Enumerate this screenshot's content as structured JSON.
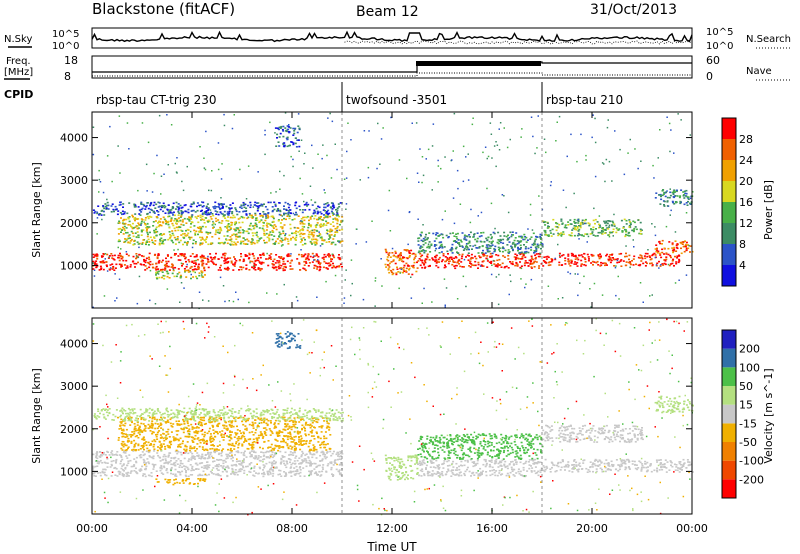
{
  "header": {
    "station": "Blackstone (fitACF)",
    "beam": "Beam 12",
    "date": "31/Oct/2013"
  },
  "noise_panel": {
    "left_label": "N.Sky",
    "right_label": "N.Search",
    "ticks_top": "10^5",
    "ticks_bottom": "10^0"
  },
  "freq_panel": {
    "left_label": "Freq.",
    "left_unit": "[MHz]",
    "left_ticks": [
      "18",
      "8"
    ],
    "right_label": "Nave",
    "right_ticks": [
      "60",
      "0"
    ]
  },
  "cpid": {
    "label": "CPID",
    "segments": [
      {
        "name": "rbsp-tau CT-trig 230",
        "start_hour": 0
      },
      {
        "name": "twofsound -3501",
        "start_hour": 10
      },
      {
        "name": "rbsp-tau 210",
        "start_hour": 18
      }
    ]
  },
  "colors": {
    "power": [
      "#1010e0",
      "#2c54c8",
      "#3c8c64",
      "#48b048",
      "#d8d820",
      "#f0a000",
      "#f06000",
      "#ff0000"
    ],
    "velocity_pos": [
      "#2020c0",
      "#3070a8",
      "#4cc048",
      "#b4e080"
    ],
    "velocity_neg": [
      "#f0b000",
      "#f08000",
      "#f04800",
      "#ff0000"
    ],
    "velocity_ground": "#c8c8c8"
  },
  "chart_data": [
    {
      "type": "heatmap",
      "name": "power",
      "xlabel": "",
      "ylabel": "Slant Range [km]",
      "xlim": [
        0,
        24
      ],
      "ylim": [
        0,
        4600
      ],
      "yticks": [
        "1000",
        "2000",
        "3000",
        "4000"
      ],
      "colorbar_label": "Power [dB]",
      "colorbar_ticks": [
        "4",
        "8",
        "12",
        "16",
        "20",
        "24",
        "28"
      ],
      "bands": [
        {
          "x": [
            0.0,
            10.0
          ],
          "y": [
            900,
            1300
          ],
          "level": 7
        },
        {
          "x": [
            1.0,
            10.0
          ],
          "y": [
            1500,
            2200
          ],
          "level": 4
        },
        {
          "x": [
            0.0,
            10.0
          ],
          "y": [
            2200,
            2500
          ],
          "level": 1
        },
        {
          "x": [
            2.5,
            4.5
          ],
          "y": [
            700,
            900
          ],
          "level": 4
        },
        {
          "x": [
            7.3,
            8.3
          ],
          "y": [
            3800,
            4300
          ],
          "level": 1
        },
        {
          "x": [
            11.7,
            13.0
          ],
          "y": [
            800,
            1400
          ],
          "level": 6
        },
        {
          "x": [
            13.0,
            18.0
          ],
          "y": [
            950,
            1300
          ],
          "level": 7
        },
        {
          "x": [
            13.0,
            18.0
          ],
          "y": [
            1300,
            1800
          ],
          "level": 2
        },
        {
          "x": [
            18.0,
            23.5
          ],
          "y": [
            1000,
            1300
          ],
          "level": 7
        },
        {
          "x": [
            18.0,
            22.0
          ],
          "y": [
            1700,
            2100
          ],
          "level": 3
        },
        {
          "x": [
            22.5,
            24.0
          ],
          "y": [
            1300,
            1600
          ],
          "level": 6
        },
        {
          "x": [
            22.5,
            24.0
          ],
          "y": [
            2400,
            2800
          ],
          "level": 2
        }
      ]
    },
    {
      "type": "heatmap",
      "name": "velocity",
      "xlabel": "Time UT",
      "ylabel": "Slant Range [km]",
      "xlim": [
        0,
        24
      ],
      "ylim": [
        0,
        4600
      ],
      "yticks": [
        "1000",
        "2000",
        "3000",
        "4000"
      ],
      "xticks": [
        "00:00",
        "04:00",
        "08:00",
        "12:00",
        "16:00",
        "20:00",
        "00:00"
      ],
      "colorbar_label": "Velocity [m s^-1]",
      "colorbar_ticks": [
        "200",
        "100",
        "50",
        "15",
        "-15",
        "-50",
        "-100",
        "-200"
      ],
      "bands": [
        {
          "x": [
            0.0,
            10.0
          ],
          "y": [
            900,
            1500
          ],
          "color": "ground"
        },
        {
          "x": [
            1.0,
            9.5
          ],
          "y": [
            1500,
            2300
          ],
          "color": "neg0"
        },
        {
          "x": [
            0.0,
            10.0
          ],
          "y": [
            2200,
            2500
          ],
          "color": "pos3"
        },
        {
          "x": [
            2.5,
            4.5
          ],
          "y": [
            700,
            850
          ],
          "color": "neg0"
        },
        {
          "x": [
            7.3,
            8.3
          ],
          "y": [
            3900,
            4300
          ],
          "color": "pos1"
        },
        {
          "x": [
            11.7,
            13.0
          ],
          "y": [
            800,
            1400
          ],
          "color": "pos3"
        },
        {
          "x": [
            13.0,
            18.0
          ],
          "y": [
            900,
            1300
          ],
          "color": "ground"
        },
        {
          "x": [
            13.0,
            18.0
          ],
          "y": [
            1300,
            1900
          ],
          "color": "pos2"
        },
        {
          "x": [
            18.0,
            24.0
          ],
          "y": [
            1000,
            1300
          ],
          "color": "ground"
        },
        {
          "x": [
            18.0,
            22.0
          ],
          "y": [
            1700,
            2100
          ],
          "color": "ground"
        },
        {
          "x": [
            22.5,
            24.0
          ],
          "y": [
            2400,
            2800
          ],
          "color": "pos3"
        }
      ]
    }
  ]
}
